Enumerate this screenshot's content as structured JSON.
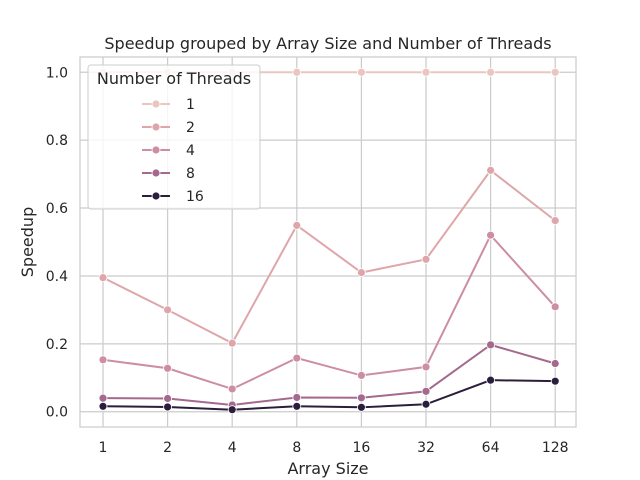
{
  "chart_data": {
    "type": "line",
    "title": "Speedup grouped by Array Size and Number of Threads",
    "xlabel": "Array Size",
    "ylabel": "Speedup",
    "categories": [
      "1",
      "2",
      "4",
      "8",
      "16",
      "32",
      "64",
      "128"
    ],
    "ylim": [
      -0.045,
      1.045
    ],
    "yticks": [
      "0.0",
      "0.2",
      "0.4",
      "0.6",
      "0.8",
      "1.0"
    ],
    "grid": true,
    "legend": {
      "title": "Number of Threads",
      "placement": "top-left"
    },
    "series": [
      {
        "name": "1",
        "color": "#ebc5c0",
        "values": [
          1.0,
          1.0,
          1.0,
          1.0,
          1.0,
          1.0,
          1.0,
          1.0
        ]
      },
      {
        "name": "2",
        "color": "#dfa6aa",
        "values": [
          0.395,
          0.3,
          0.202,
          0.549,
          0.41,
          0.449,
          0.711,
          0.563
        ]
      },
      {
        "name": "4",
        "color": "#cc8ea0",
        "values": [
          0.153,
          0.128,
          0.067,
          0.158,
          0.107,
          0.132,
          0.52,
          0.309
        ]
      },
      {
        "name": "8",
        "color": "#a5698e",
        "values": [
          0.04,
          0.039,
          0.02,
          0.042,
          0.041,
          0.06,
          0.197,
          0.142
        ]
      },
      {
        "name": "16",
        "color": "#2b1d3c",
        "values": [
          0.016,
          0.014,
          0.006,
          0.016,
          0.013,
          0.022,
          0.093,
          0.09
        ]
      }
    ]
  }
}
